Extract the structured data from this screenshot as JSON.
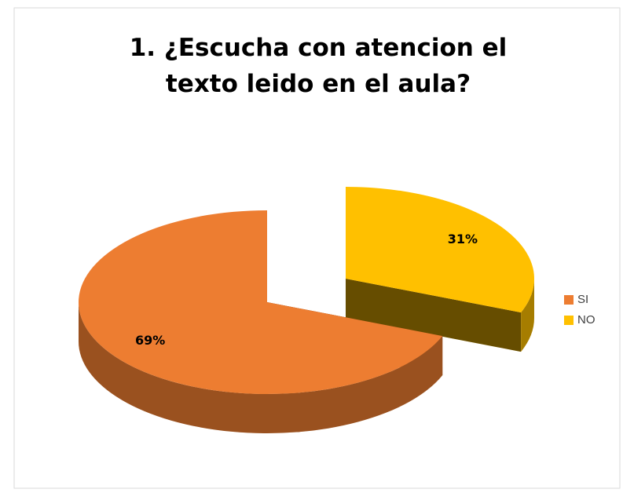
{
  "chart_data": {
    "type": "pie",
    "title": "1. ¿Escucha con atencion el texto leido en el aula?",
    "categories": [
      "SI",
      "NO"
    ],
    "values": [
      69,
      31
    ],
    "value_labels": [
      "69%",
      "31%"
    ],
    "colors": [
      "#ED7D31",
      "#FFC000"
    ],
    "legend": "right",
    "three_d": true,
    "exploded": [
      false,
      true
    ]
  }
}
